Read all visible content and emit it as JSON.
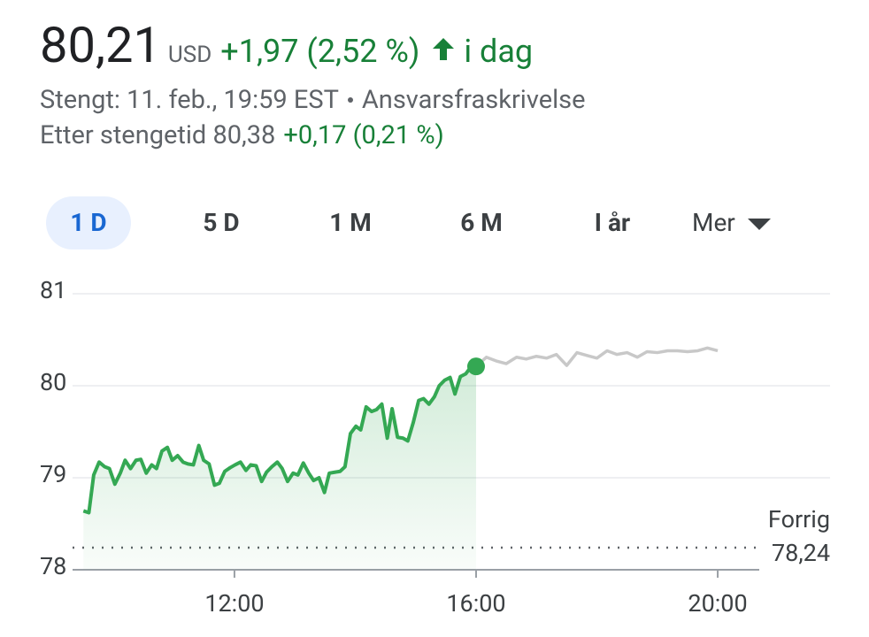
{
  "header": {
    "price": "80,21",
    "currency": "USD",
    "change": "+1,97 (2,52 %)",
    "period": "i dag",
    "closed": "Stengt: 11. feb., 19:59 EST",
    "disclaimer": "Ansvarsfraskrivelse",
    "after_hours": "Etter stengetid 80,38",
    "after_hours_change": "+0,17 (0,21 %)"
  },
  "tabs": [
    "1 D",
    "5 D",
    "1 M",
    "6 M",
    "I år",
    "Mer"
  ],
  "chart_data": {
    "type": "line",
    "xlim": [
      9.32,
      21.86
    ],
    "ylim": [
      78,
      81
    ],
    "xticks": [
      {
        "value": 12,
        "label": "12:00"
      },
      {
        "value": 16,
        "label": "16:00"
      },
      {
        "value": 20,
        "label": "20:00"
      }
    ],
    "yticks": [
      81,
      80,
      79,
      78
    ],
    "grid": true,
    "series": [
      {
        "color": "#34a853",
        "fill": true,
        "x": [
          9.5,
          9.59,
          9.67,
          9.76,
          9.85,
          9.93,
          10.02,
          10.11,
          10.19,
          10.28,
          10.37,
          10.45,
          10.54,
          10.63,
          10.71,
          10.8,
          10.89,
          10.97,
          11.06,
          11.15,
          11.23,
          11.32,
          11.41,
          11.49,
          11.58,
          11.67,
          11.75,
          11.84,
          11.93,
          12.01,
          12.1,
          12.19,
          12.27,
          12.36,
          12.45,
          12.53,
          12.62,
          12.71,
          12.79,
          12.88,
          12.97,
          13.05,
          13.14,
          13.23,
          13.31,
          13.4,
          13.49,
          13.57,
          13.66,
          13.75,
          13.83,
          13.92,
          14.01,
          14.09,
          14.18,
          14.27,
          14.35,
          14.44,
          14.53,
          14.61,
          14.7,
          14.79,
          14.87,
          14.96,
          15.05,
          15.13,
          15.22,
          15.31,
          15.39,
          15.48,
          15.57,
          15.65,
          15.74,
          15.83,
          15.91,
          16.0
        ],
        "values": [
          78.64,
          78.62,
          79.03,
          79.17,
          79.12,
          79.1,
          78.93,
          79.05,
          79.19,
          79.1,
          79.19,
          79.2,
          79.05,
          79.14,
          79.1,
          79.29,
          79.33,
          79.19,
          79.24,
          79.17,
          79.15,
          79.14,
          79.35,
          79.19,
          79.15,
          78.92,
          78.94,
          79.07,
          79.11,
          79.14,
          79.17,
          79.08,
          79.14,
          79.13,
          78.96,
          79.06,
          79.12,
          79.17,
          79.1,
          78.96,
          79.05,
          79.03,
          79.16,
          79.05,
          78.97,
          79.0,
          78.84,
          79.05,
          79.06,
          79.07,
          79.12,
          79.48,
          79.56,
          79.52,
          79.77,
          79.72,
          79.74,
          79.8,
          79.43,
          79.75,
          79.44,
          79.43,
          79.4,
          79.6,
          79.84,
          79.86,
          79.8,
          79.88,
          80.0,
          80.06,
          80.09,
          79.91,
          80.1,
          80.13,
          80.2,
          80.21
        ]
      },
      {
        "color": "#c8c8c8",
        "fill": false,
        "x": [
          16.0,
          16.17,
          16.33,
          16.5,
          16.67,
          16.83,
          17.0,
          17.17,
          17.33,
          17.5,
          17.67,
          17.83,
          18.0,
          18.17,
          18.33,
          18.5,
          18.67,
          18.83,
          19.0,
          19.17,
          19.33,
          19.5,
          19.67,
          19.83,
          20.0
        ],
        "values": [
          80.21,
          80.31,
          80.27,
          80.24,
          80.31,
          80.29,
          80.32,
          80.3,
          80.34,
          80.22,
          80.36,
          80.33,
          80.3,
          80.38,
          80.34,
          80.36,
          80.31,
          80.37,
          80.36,
          80.38,
          80.38,
          80.37,
          80.38,
          80.41,
          80.38
        ]
      }
    ],
    "previous_close": {
      "name": "Forrig",
      "value": 78.24,
      "value_label": "78,24"
    }
  }
}
